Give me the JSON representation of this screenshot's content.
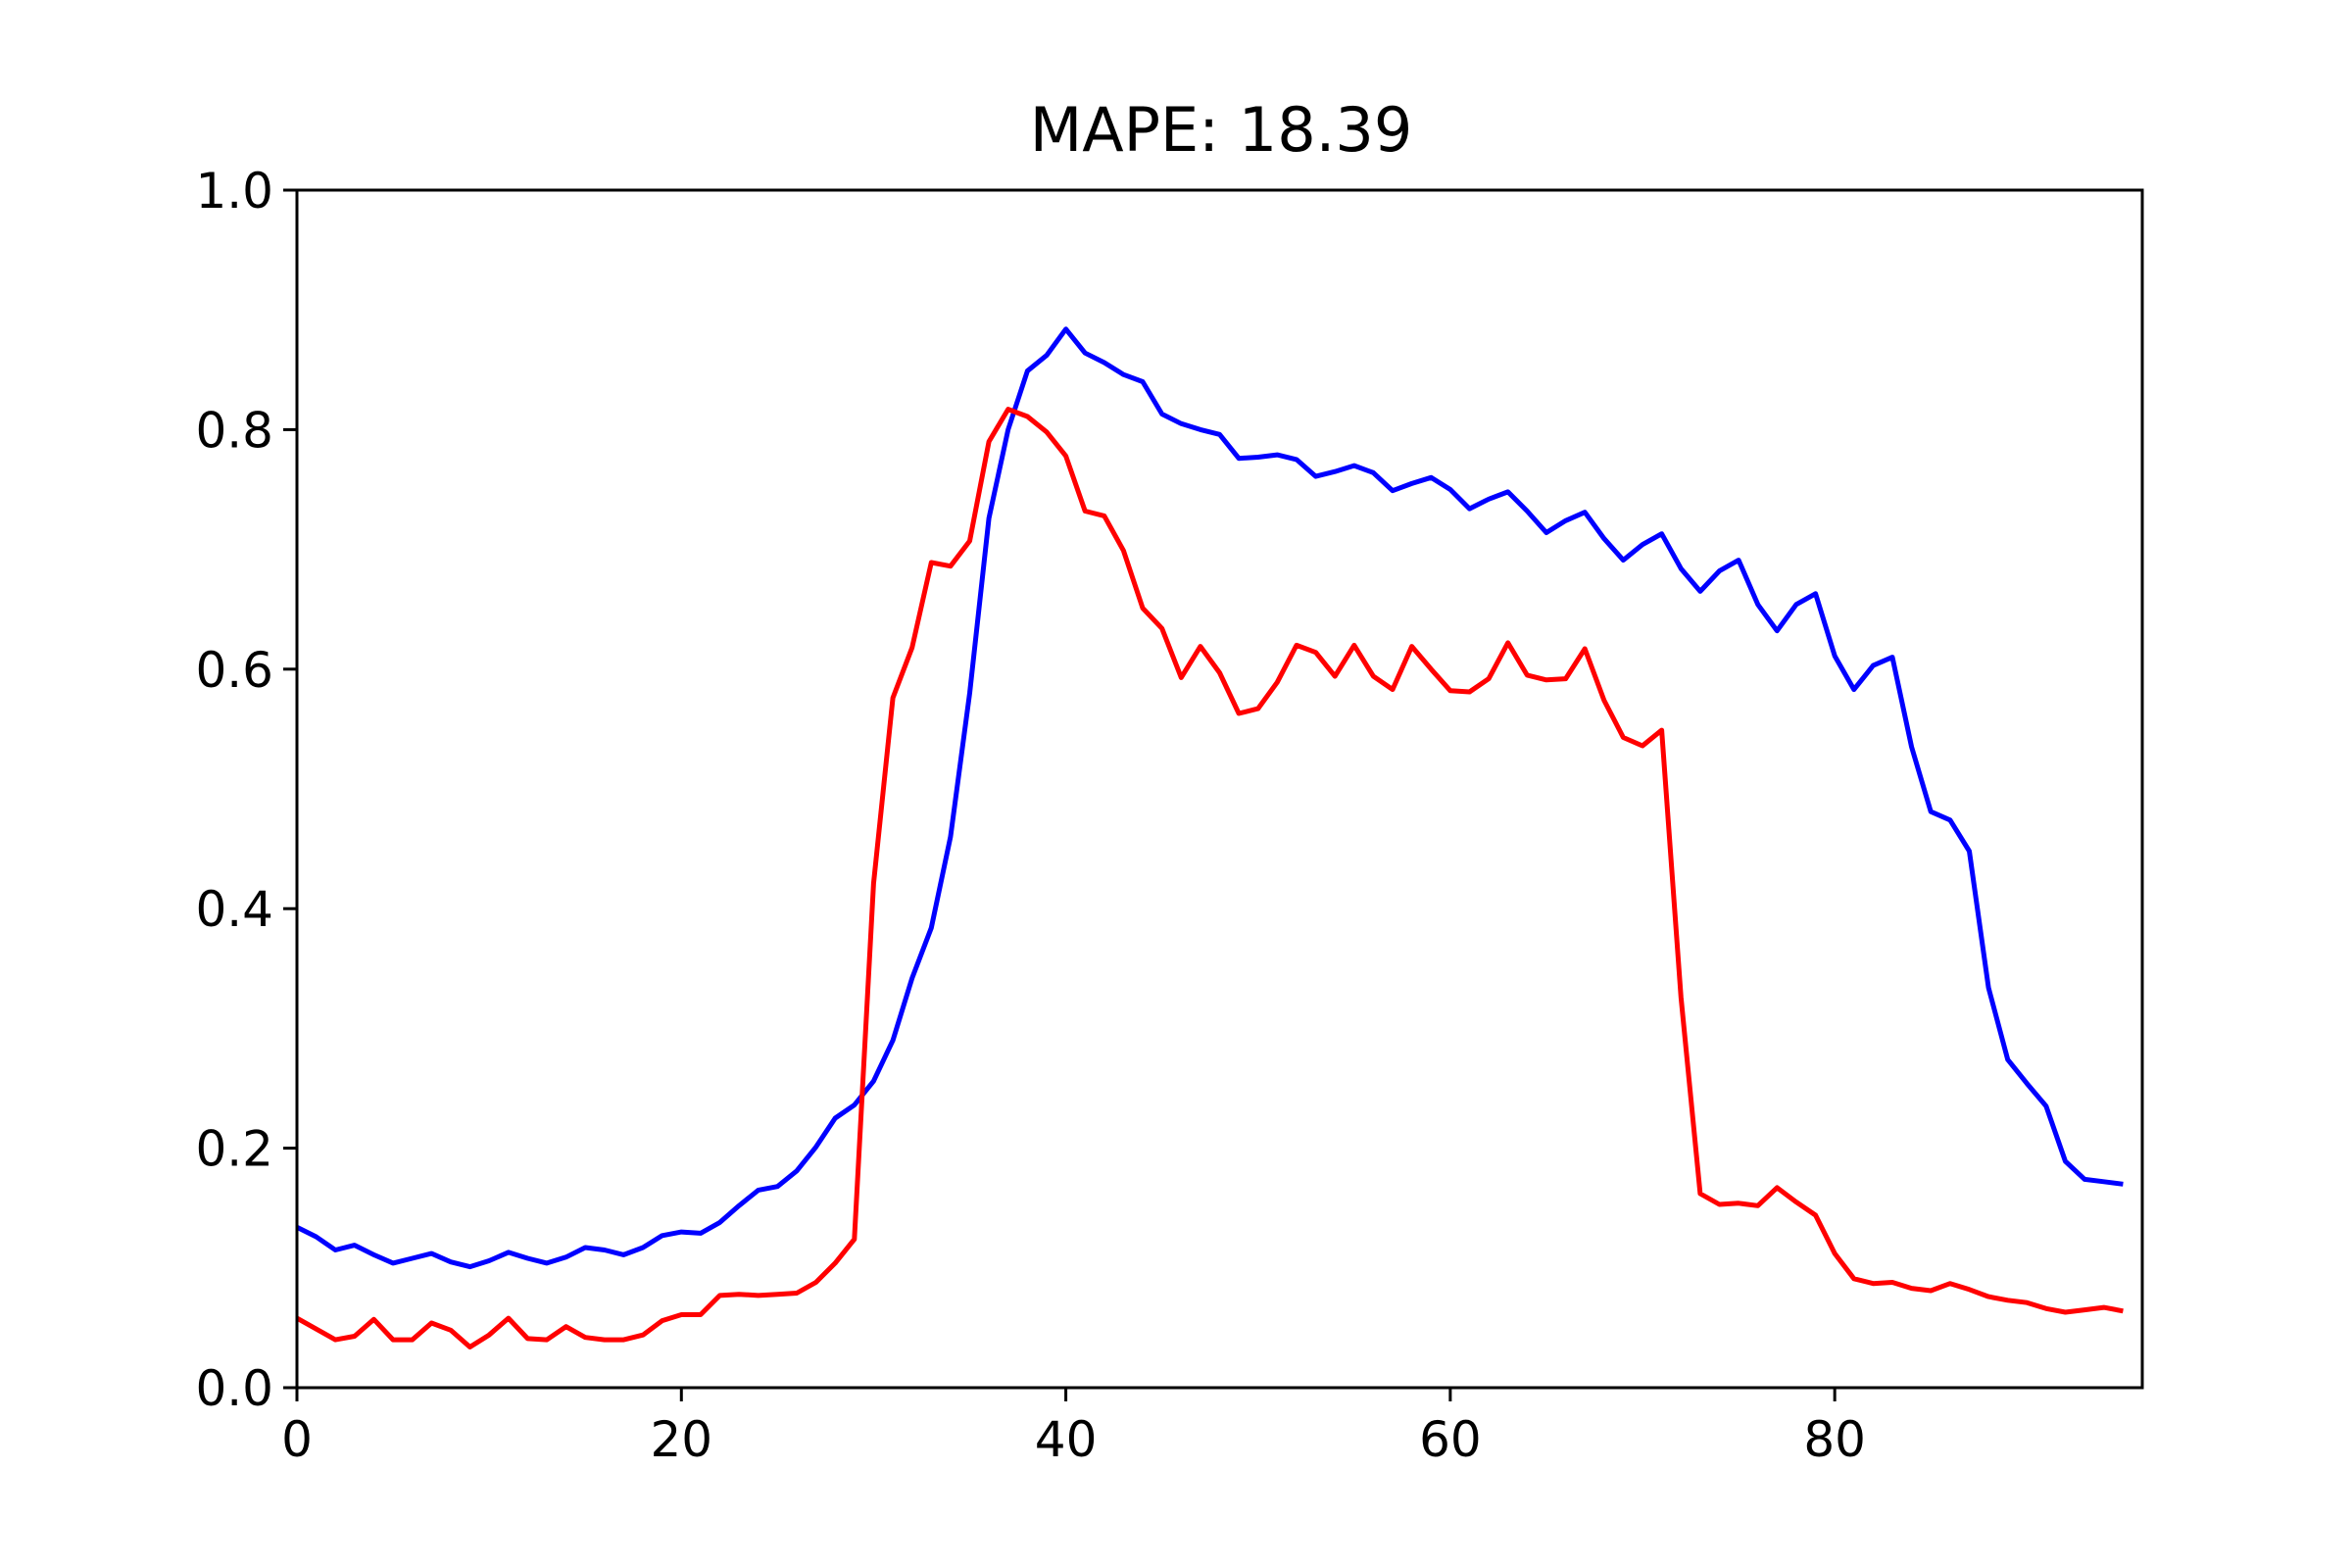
{
  "chart_data": {
    "type": "line",
    "title": "MAPE: 18.39",
    "xlabel": "",
    "ylabel": "",
    "xlim": [
      0,
      96
    ],
    "ylim": [
      0.0,
      1.0
    ],
    "xticks": [
      0,
      20,
      40,
      60,
      80
    ],
    "xtick_labels": [
      "0",
      "20",
      "40",
      "60",
      "80"
    ],
    "yticks": [
      0.0,
      0.2,
      0.4,
      0.6,
      0.8,
      1.0
    ],
    "ytick_labels": [
      "0.0",
      "0.2",
      "0.4",
      "0.6",
      "0.8",
      "1.0"
    ],
    "grid": false,
    "legend": "none",
    "x": [
      0,
      1,
      2,
      3,
      4,
      5,
      6,
      7,
      8,
      9,
      10,
      11,
      12,
      13,
      14,
      15,
      16,
      17,
      18,
      19,
      20,
      21,
      22,
      23,
      24,
      25,
      26,
      27,
      28,
      29,
      30,
      31,
      32,
      33,
      34,
      35,
      36,
      37,
      38,
      39,
      40,
      41,
      42,
      43,
      44,
      45,
      46,
      47,
      48,
      49,
      50,
      51,
      52,
      53,
      54,
      55,
      56,
      57,
      58,
      59,
      60,
      61,
      62,
      63,
      64,
      65,
      66,
      67,
      68,
      69,
      70,
      71,
      72,
      73,
      74,
      75,
      76,
      77,
      78,
      79,
      80,
      81,
      82,
      83,
      84,
      85,
      86,
      87,
      88,
      89,
      90,
      91,
      92,
      93,
      94,
      95
    ],
    "series": [
      {
        "color": "#0000ff",
        "values": [
          0.134,
          0.126,
          0.115,
          0.119,
          0.111,
          0.104,
          0.108,
          0.112,
          0.105,
          0.101,
          0.106,
          0.113,
          0.108,
          0.104,
          0.109,
          0.117,
          0.115,
          0.111,
          0.117,
          0.127,
          0.13,
          0.129,
          0.138,
          0.152,
          0.165,
          0.168,
          0.181,
          0.201,
          0.225,
          0.236,
          0.256,
          0.29,
          0.342,
          0.384,
          0.46,
          0.58,
          0.726,
          0.8,
          0.849,
          0.862,
          0.884,
          0.864,
          0.856,
          0.846,
          0.84,
          0.813,
          0.805,
          0.8,
          0.796,
          0.776,
          0.777,
          0.779,
          0.775,
          0.761,
          0.765,
          0.77,
          0.764,
          0.749,
          0.755,
          0.76,
          0.75,
          0.734,
          0.742,
          0.748,
          0.732,
          0.714,
          0.724,
          0.731,
          0.709,
          0.691,
          0.704,
          0.713,
          0.684,
          0.665,
          0.682,
          0.691,
          0.654,
          0.632,
          0.654,
          0.663,
          0.611,
          0.583,
          0.603,
          0.61,
          0.535,
          0.481,
          0.474,
          0.448,
          0.334,
          0.274,
          0.254,
          0.235,
          0.189,
          0.174,
          0.172,
          0.17
        ]
      },
      {
        "color": "#ff0000",
        "values": [
          0.058,
          0.049,
          0.04,
          0.043,
          0.057,
          0.04,
          0.04,
          0.054,
          0.048,
          0.034,
          0.044,
          0.058,
          0.041,
          0.04,
          0.051,
          0.042,
          0.04,
          0.04,
          0.044,
          0.056,
          0.061,
          0.061,
          0.077,
          0.078,
          0.077,
          0.078,
          0.079,
          0.088,
          0.104,
          0.124,
          0.421,
          0.576,
          0.618,
          0.689,
          0.686,
          0.707,
          0.79,
          0.817,
          0.811,
          0.798,
          0.778,
          0.732,
          0.728,
          0.699,
          0.651,
          0.634,
          0.593,
          0.619,
          0.597,
          0.563,
          0.567,
          0.589,
          0.62,
          0.614,
          0.594,
          0.62,
          0.594,
          0.583,
          0.619,
          0.6,
          0.582,
          0.581,
          0.592,
          0.622,
          0.595,
          0.591,
          0.592,
          0.617,
          0.574,
          0.543,
          0.536,
          0.549,
          0.326,
          0.162,
          0.153,
          0.154,
          0.152,
          0.167,
          0.155,
          0.144,
          0.112,
          0.091,
          0.087,
          0.088,
          0.083,
          0.081,
          0.087,
          0.082,
          0.076,
          0.073,
          0.071,
          0.066,
          0.063,
          0.065,
          0.067,
          0.064
        ]
      }
    ]
  }
}
